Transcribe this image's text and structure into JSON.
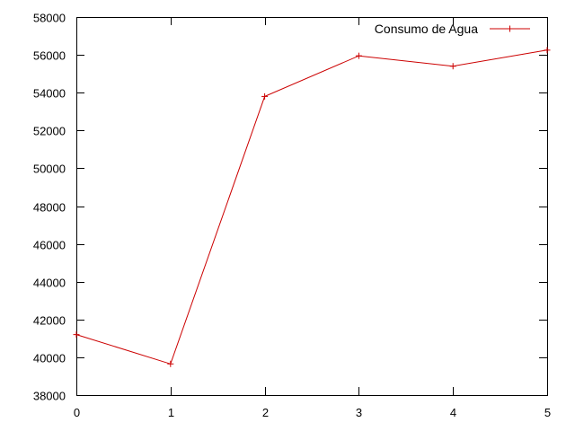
{
  "chart_data": {
    "type": "line",
    "title": "",
    "xlabel": "",
    "ylabel": "",
    "xlim": [
      0,
      5
    ],
    "ylim": [
      38000,
      58000
    ],
    "x_ticks": [
      0,
      1,
      2,
      3,
      4,
      5
    ],
    "y_ticks": [
      38000,
      40000,
      42000,
      44000,
      46000,
      48000,
      50000,
      52000,
      54000,
      56000,
      58000
    ],
    "grid": false,
    "legend": "top-right",
    "series": [
      {
        "name": "Consumo de Agua",
        "color": "#cc0000",
        "marker": "plus",
        "x": [
          0,
          1,
          2,
          3,
          4,
          5
        ],
        "y": [
          41200,
          39650,
          53800,
          55950,
          55400,
          56250
        ]
      }
    ]
  }
}
